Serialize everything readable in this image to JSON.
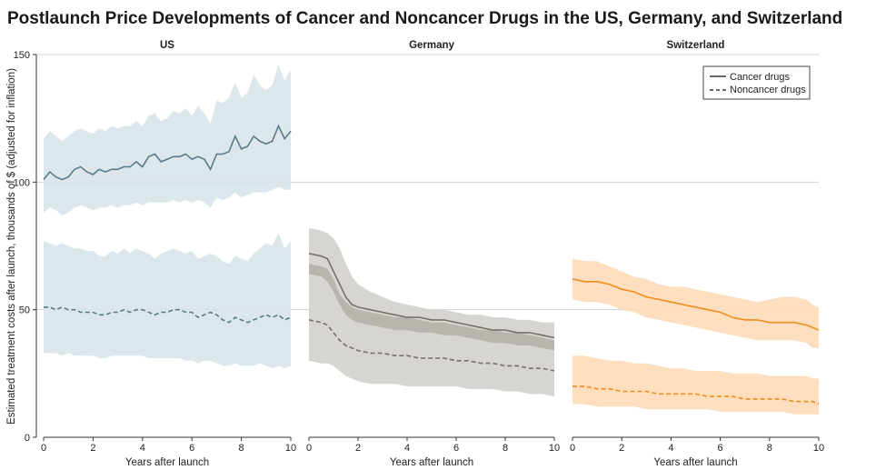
{
  "title": "Postlaunch Price Developments of Cancer and Noncancer Drugs in the US, Germany, and Switzerland",
  "ylabel": "Estimated treatment costs after launch, thousands of $ (adjusted for inflation)",
  "legend": {
    "placement": "top-right",
    "cancer": "Cancer drugs",
    "noncancer": "Noncancer drugs"
  },
  "chart_data": {
    "type": "line",
    "ylim": [
      0,
      150
    ],
    "yticks": [
      "0",
      "50",
      "100",
      "150"
    ],
    "grid": "horizontal",
    "panels": [
      {
        "name": "US",
        "xlabel": "Years after launch",
        "xlim": [
          0,
          10
        ],
        "xticks": [
          "0",
          "2",
          "4",
          "6",
          "8",
          "10"
        ],
        "color": "#5b7b88",
        "band_color": "#d6e3e7",
        "series": [
          {
            "legend": "cancer",
            "style": "solid",
            "x": [
              0,
              0.25,
              0.5,
              0.75,
              1,
              1.25,
              1.5,
              1.75,
              2,
              2.25,
              2.5,
              2.75,
              3,
              3.25,
              3.5,
              3.75,
              4,
              4.25,
              4.5,
              4.75,
              5,
              5.25,
              5.5,
              5.75,
              6,
              6.25,
              6.5,
              6.75,
              7,
              7.25,
              7.5,
              7.75,
              8,
              8.25,
              8.5,
              8.75,
              9,
              9.25,
              9.5,
              9.75,
              10
            ],
            "y": [
              101,
              104,
              102,
              101,
              102,
              105,
              106,
              104,
              103,
              105,
              104,
              105,
              105,
              106,
              106,
              108,
              106,
              110,
              111,
              108,
              109,
              110,
              110,
              111,
              109,
              110,
              109,
              105,
              111,
              111,
              112,
              118,
              113,
              114,
              118,
              116,
              115,
              116,
              122,
              117,
              120
            ],
            "lower": [
              88,
              90,
              89,
              87,
              88,
              90,
              91,
              90,
              89,
              90,
              90,
              91,
              90,
              91,
              91,
              92,
              91,
              92,
              92,
              92,
              92,
              93,
              92,
              93,
              92,
              93,
              92,
              90,
              94,
              93,
              94,
              96,
              94,
              95,
              96,
              96,
              96,
              97,
              98,
              97,
              97
            ],
            "upper": [
              117,
              120,
              118,
              116,
              118,
              120,
              121,
              120,
              119,
              121,
              120,
              122,
              121,
              122,
              122,
              124,
              122,
              126,
              127,
              124,
              125,
              128,
              127,
              129,
              126,
              130,
              127,
              123,
              132,
              131,
              133,
              139,
              133,
              135,
              142,
              138,
              136,
              138,
              146,
              140,
              144
            ]
          },
          {
            "legend": "noncancer",
            "style": "dashed",
            "x": [
              0,
              0.25,
              0.5,
              0.75,
              1,
              1.25,
              1.5,
              1.75,
              2,
              2.25,
              2.5,
              2.75,
              3,
              3.25,
              3.5,
              3.75,
              4,
              4.25,
              4.5,
              4.75,
              5,
              5.25,
              5.5,
              5.75,
              6,
              6.25,
              6.5,
              6.75,
              7,
              7.25,
              7.5,
              7.75,
              8,
              8.25,
              8.5,
              8.75,
              9,
              9.25,
              9.5,
              9.75,
              10
            ],
            "y": [
              51,
              51,
              50,
              51,
              50,
              50,
              49,
              49,
              49,
              48,
              48,
              49,
              49,
              50,
              49,
              50,
              50,
              49,
              48,
              49,
              49,
              50,
              50,
              49,
              49,
              47,
              48,
              49,
              48,
              46,
              45,
              47,
              46,
              45,
              46,
              47,
              48,
              47,
              48,
              46,
              47
            ],
            "lower": [
              33,
              33,
              33,
              32,
              33,
              32,
              32,
              32,
              32,
              31,
              31,
              32,
              32,
              32,
              32,
              32,
              32,
              31,
              31,
              31,
              31,
              31,
              31,
              30,
              30,
              29,
              30,
              30,
              29,
              28,
              28,
              29,
              28,
              28,
              28,
              29,
              28,
              27,
              28,
              27,
              28
            ],
            "upper": [
              77,
              76,
              75,
              76,
              75,
              74,
              74,
              73,
              73,
              71,
              71,
              73,
              72,
              74,
              72,
              74,
              73,
              72,
              70,
              72,
              73,
              74,
              73,
              72,
              73,
              70,
              71,
              72,
              71,
              69,
              68,
              71,
              70,
              69,
              72,
              74,
              76,
              75,
              80,
              74,
              77
            ]
          }
        ]
      },
      {
        "name": "Germany",
        "xlabel": "Years after launch",
        "xlim": [
          0,
          10
        ],
        "xticks": [
          "0",
          "2",
          "4",
          "6",
          "8",
          "10"
        ],
        "color": "#7a706a",
        "band_color": "#d6d4d0",
        "inner_band_color": "#b8b4ae",
        "series": [
          {
            "legend": "cancer",
            "style": "solid",
            "x": [
              0,
              0.5,
              0.75,
              1,
              1.25,
              1.5,
              1.75,
              2,
              2.5,
              3,
              3.5,
              4,
              4.5,
              5,
              5.5,
              6,
              6.5,
              7,
              7.5,
              8,
              8.5,
              9,
              9.5,
              10
            ],
            "y": [
              72,
              71,
              70,
              65,
              60,
              55,
              52,
              51,
              50,
              49,
              48,
              47,
              47,
              46,
              46,
              45,
              44,
              43,
              42,
              42,
              41,
              41,
              40,
              39
            ],
            "lower": [
              30,
              29,
              29,
              28,
              26,
              24,
              23,
              22,
              21,
              21,
              21,
              20,
              20,
              20,
              20,
              20,
              19,
              19,
              19,
              18,
              18,
              17,
              17,
              16
            ],
            "upper": [
              82,
              81,
              80,
              78,
              74,
              68,
              63,
              60,
              57,
              55,
              53,
              52,
              51,
              50,
              50,
              49,
              48,
              48,
              47,
              47,
              46,
              46,
              45,
              45
            ],
            "inner_lower": [
              64,
              63,
              61,
              57,
              52,
              48,
              46,
              45,
              44,
              43,
              42,
              42,
              41,
              41,
              40,
              40,
              39,
              38,
              37,
              37,
              36,
              36,
              35,
              34
            ],
            "inner_upper": [
              68,
              67,
              66,
              62,
              56,
              53,
              51,
              50,
              49,
              48,
              47,
              47,
              46,
              45,
              45,
              44,
              43,
              42,
              42,
              41,
              41,
              40,
              39,
              38
            ]
          },
          {
            "legend": "noncancer",
            "style": "dashed",
            "x": [
              0,
              0.5,
              0.75,
              1,
              1.25,
              1.5,
              1.75,
              2,
              2.5,
              3,
              3.5,
              4,
              4.5,
              5,
              5.5,
              6,
              6.5,
              7,
              7.5,
              8,
              8.5,
              9,
              9.5,
              10
            ],
            "y": [
              46,
              45,
              44,
              41,
              38,
              36,
              35,
              34,
              33,
              33,
              32,
              32,
              31,
              31,
              31,
              30,
              30,
              29,
              29,
              28,
              28,
              27,
              27,
              26
            ],
            "lower": [
              30,
              29,
              29,
              28,
              26,
              24,
              23,
              22,
              21,
              21,
              21,
              20,
              20,
              20,
              20,
              20,
              19,
              19,
              19,
              18,
              18,
              17,
              17,
              16
            ],
            "upper": [
              82,
              81,
              80,
              78,
              74,
              68,
              63,
              60,
              57,
              55,
              53,
              52,
              51,
              50,
              50,
              49,
              48,
              48,
              47,
              47,
              46,
              46,
              45,
              45
            ]
          }
        ]
      },
      {
        "name": "Switzerland",
        "xlabel": "Years after launch",
        "xlim": [
          0,
          10
        ],
        "xticks": [
          "0",
          "2",
          "4",
          "6",
          "8",
          "10"
        ],
        "color": "#f08c1a",
        "band_color": "#fdd9b5",
        "series": [
          {
            "legend": "cancer",
            "style": "solid",
            "x": [
              0,
              0.5,
              1,
              1.5,
              2,
              2.5,
              3,
              3.5,
              4,
              4.5,
              5,
              5.5,
              6,
              6.5,
              7,
              7.5,
              8,
              8.5,
              9,
              9.5,
              9.75,
              10
            ],
            "y": [
              62,
              61,
              61,
              60,
              58,
              57,
              55,
              54,
              53,
              52,
              51,
              50,
              49,
              47,
              46,
              46,
              45,
              45,
              45,
              44,
              43,
              42
            ],
            "lower": [
              54,
              53,
              53,
              52,
              50,
              49,
              47,
              46,
              45,
              44,
              43,
              42,
              41,
              40,
              39,
              38,
              38,
              38,
              38,
              37,
              35,
              35
            ],
            "upper": [
              70,
              69,
              69,
              67,
              65,
              63,
              62,
              60,
              59,
              59,
              58,
              57,
              56,
              55,
              54,
              53,
              54,
              55,
              55,
              54,
              52,
              51
            ]
          },
          {
            "legend": "noncancer",
            "style": "dashed",
            "x": [
              0,
              0.5,
              1,
              1.5,
              2,
              2.5,
              3,
              3.5,
              4,
              4.5,
              5,
              5.5,
              6,
              6.5,
              7,
              7.5,
              8,
              8.5,
              9,
              9.5,
              9.75,
              10
            ],
            "y": [
              20,
              20,
              19,
              19,
              18,
              18,
              18,
              17,
              17,
              17,
              17,
              16,
              16,
              16,
              15,
              15,
              15,
              15,
              14,
              14,
              14,
              13
            ],
            "lower": [
              13,
              13,
              12,
              12,
              12,
              12,
              11,
              11,
              11,
              11,
              11,
              11,
              10,
              10,
              10,
              10,
              10,
              10,
              9,
              9,
              9,
              9
            ],
            "upper": [
              32,
              32,
              31,
              30,
              30,
              29,
              29,
              28,
              27,
              27,
              26,
              26,
              26,
              25,
              25,
              25,
              24,
              24,
              24,
              24,
              23,
              23
            ]
          }
        ]
      }
    ]
  }
}
